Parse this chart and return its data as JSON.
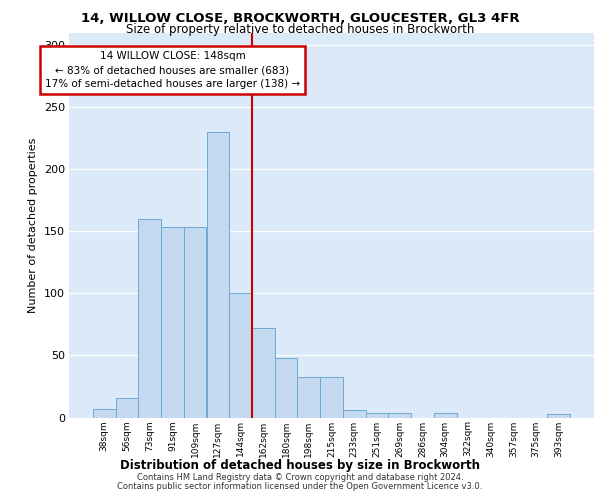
{
  "title1": "14, WILLOW CLOSE, BROCKWORTH, GLOUCESTER, GL3 4FR",
  "title2": "Size of property relative to detached houses in Brockworth",
  "xlabel": "Distribution of detached houses by size in Brockworth",
  "ylabel": "Number of detached properties",
  "bin_labels": [
    "38sqm",
    "56sqm",
    "73sqm",
    "91sqm",
    "109sqm",
    "127sqm",
    "144sqm",
    "162sqm",
    "180sqm",
    "198sqm",
    "215sqm",
    "233sqm",
    "251sqm",
    "269sqm",
    "286sqm",
    "304sqm",
    "322sqm",
    "340sqm",
    "357sqm",
    "375sqm",
    "393sqm"
  ],
  "bar_values": [
    7,
    16,
    160,
    153,
    153,
    230,
    100,
    72,
    48,
    33,
    33,
    6,
    4,
    4,
    0,
    4,
    0,
    0,
    0,
    0,
    3
  ],
  "bar_color": "#c5d9f0",
  "bar_edge_color": "#6aaad4",
  "vline_x": 6.5,
  "vline_color": "#cc0000",
  "annotation_text": "14 WILLOW CLOSE: 148sqm\n← 83% of detached houses are smaller (683)\n17% of semi-detached houses are larger (138) →",
  "annotation_color": "#cc0000",
  "ylim": [
    0,
    310
  ],
  "yticks": [
    0,
    50,
    100,
    150,
    200,
    250,
    300
  ],
  "bg_color": "#dce9f8",
  "grid_color": "#ffffff",
  "footer1": "Contains HM Land Registry data © Crown copyright and database right 2024.",
  "footer2": "Contains public sector information licensed under the Open Government Licence v3.0."
}
